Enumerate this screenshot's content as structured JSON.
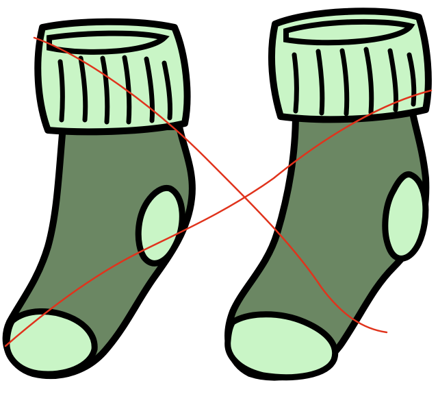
{
  "colors": {
    "background": "#ffffff",
    "outline": "#000000",
    "cuff_light_green": "#c9f5c6",
    "sock_dark_green": "#6b8763",
    "cross_red": "#e0331c"
  },
  "objects": [
    {
      "name": "left-sock",
      "icon": "sock-icon"
    },
    {
      "name": "right-sock",
      "icon": "sock-icon"
    },
    {
      "name": "red-cross-mark",
      "icon": "x-mark-icon"
    }
  ]
}
